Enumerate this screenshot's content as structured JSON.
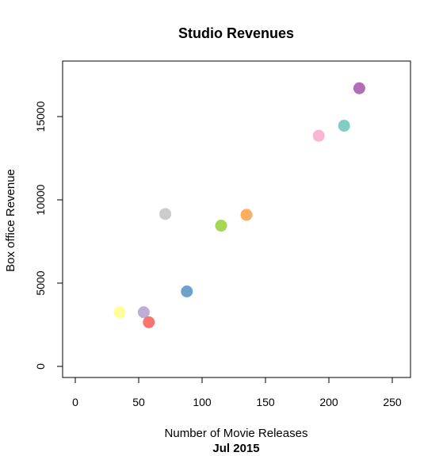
{
  "chart_data": {
    "type": "scatter",
    "title": "Studio Revenues",
    "xlabel": "Number of Movie Releases",
    "ylabel": "Box office Revenue",
    "caption": "Jul 2015",
    "xlim": [
      0,
      250
    ],
    "ylim": [
      0,
      17000
    ],
    "x_ticks": [
      0,
      50,
      100,
      150,
      200,
      250
    ],
    "y_ticks": [
      0,
      5000,
      10000,
      15000
    ],
    "x_tick_labels": [
      "0",
      "50",
      "100",
      "150",
      "200",
      "250"
    ],
    "y_tick_labels": [
      "0",
      "5000",
      "10000",
      "15000"
    ],
    "grid": false,
    "legend": "none",
    "points": [
      {
        "x": 35,
        "y": 3250,
        "color": "#FFFF99"
      },
      {
        "x": 54,
        "y": 3250,
        "color": "#BEAED4"
      },
      {
        "x": 58,
        "y": 2650,
        "color": "#F8766D"
      },
      {
        "x": 71,
        "y": 9150,
        "color": "#CCCCCC"
      },
      {
        "x": 88,
        "y": 4500,
        "color": "#6FA1CF"
      },
      {
        "x": 115,
        "y": 8450,
        "color": "#A6D854"
      },
      {
        "x": 135,
        "y": 9100,
        "color": "#FDAE61"
      },
      {
        "x": 192,
        "y": 13850,
        "color": "#F7B6D2"
      },
      {
        "x": 212,
        "y": 14450,
        "color": "#80CDC1"
      },
      {
        "x": 224,
        "y": 16700,
        "color": "#B26EB5"
      }
    ]
  }
}
